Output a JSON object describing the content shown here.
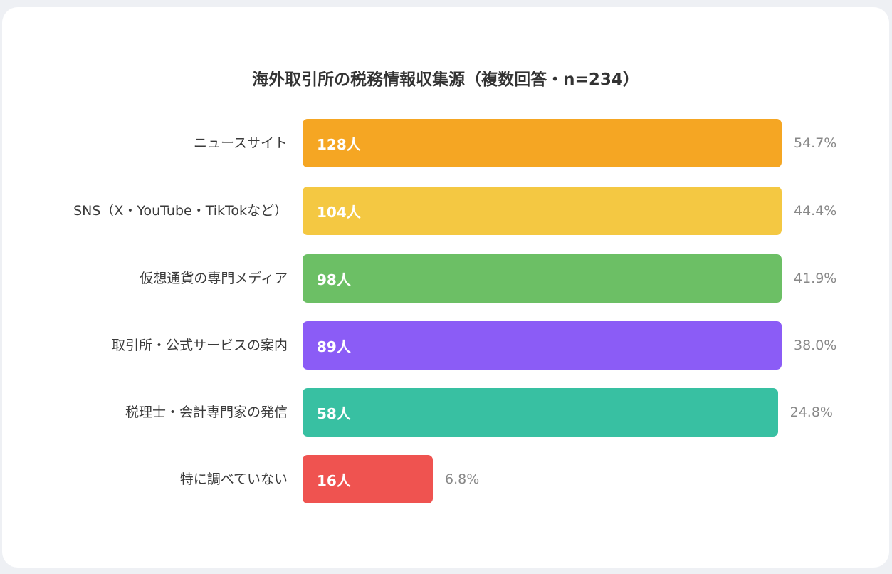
{
  "chart_data": {
    "type": "bar",
    "orientation": "horizontal",
    "title": "海外取引所の税務情報収集源（複数回答・n=234）",
    "categories": [
      "ニュースサイト",
      "SNS（X・YouTube・TikTokなど）",
      "仮想通貨の専門メディア",
      "取引所・公式サービスの案内",
      "税理士・会計専門家の発信",
      "特に調べていない"
    ],
    "values": [
      128,
      104,
      98,
      89,
      58,
      16
    ],
    "value_labels": [
      "128人",
      "104人",
      "98人",
      "89人",
      "58人",
      "16人"
    ],
    "percent_labels": [
      "54.7%",
      "44.4%",
      "41.9%",
      "38.0%",
      "24.8%",
      "6.8%"
    ],
    "percents": [
      54.7,
      44.4,
      41.9,
      38.0,
      24.8,
      6.8
    ],
    "colors": [
      "#f5a623",
      "#f4c842",
      "#6cbf65",
      "#8b5cf6",
      "#38c0a2",
      "#ef5350"
    ],
    "xlabel": "",
    "ylabel": ""
  }
}
